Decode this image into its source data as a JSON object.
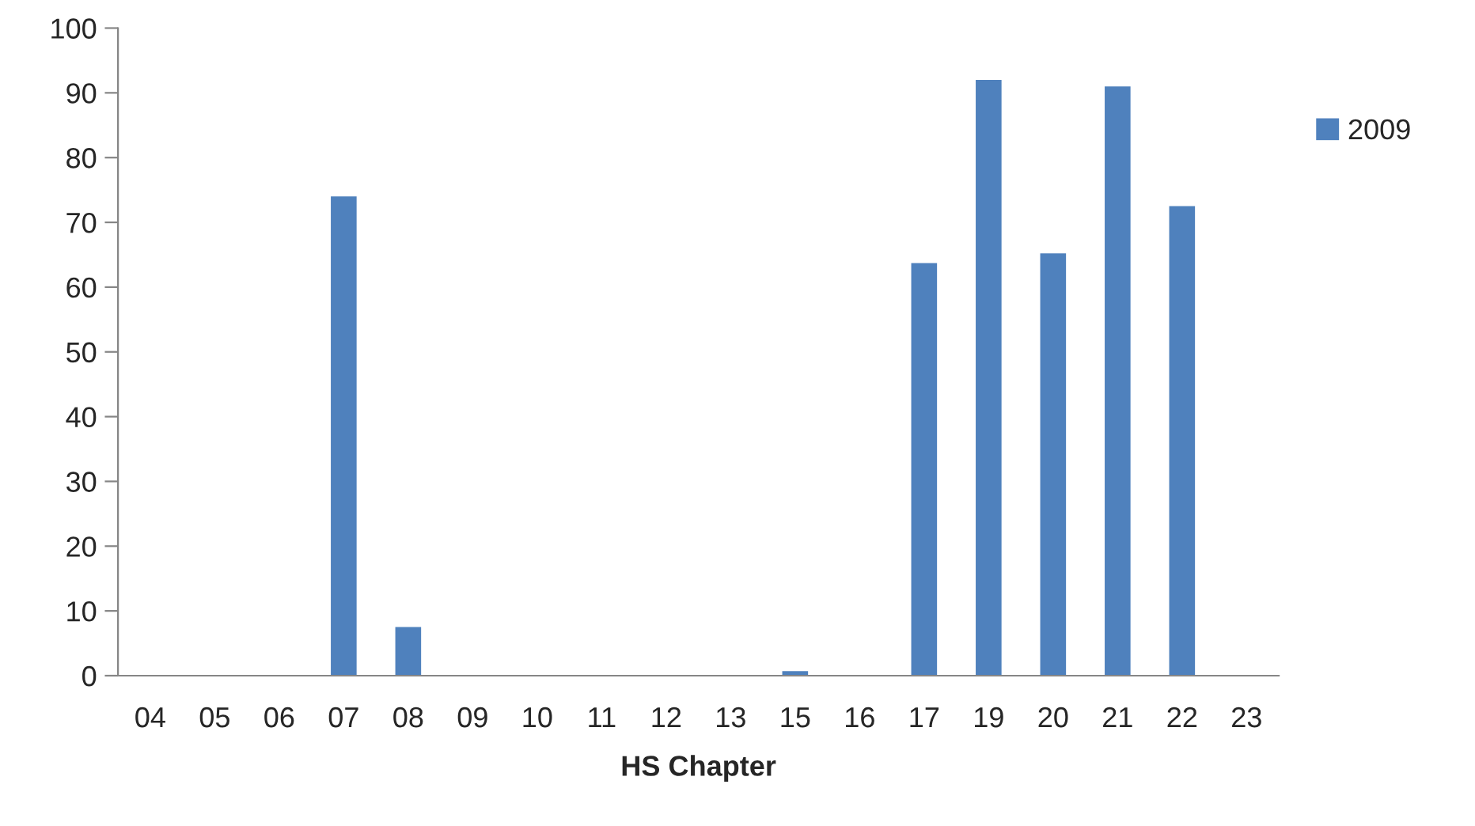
{
  "chart_data": {
    "type": "bar",
    "xlabel": "HS Chapter",
    "categories": [
      "04",
      "05",
      "06",
      "07",
      "08",
      "09",
      "10",
      "11",
      "12",
      "13",
      "15",
      "16",
      "17",
      "19",
      "20",
      "21",
      "22",
      "23"
    ],
    "series": [
      {
        "name": "2009",
        "color": "#4f81bd",
        "values": [
          0,
          0,
          0,
          74,
          7.5,
          0,
          0,
          0,
          0,
          0,
          0.7,
          0,
          63.7,
          92,
          65.2,
          91,
          72.5,
          0
        ]
      }
    ],
    "ylim": [
      0,
      100
    ],
    "yticks": [
      0,
      10,
      20,
      30,
      40,
      50,
      60,
      70,
      80,
      90,
      100
    ],
    "grid": false,
    "legend": "right"
  }
}
